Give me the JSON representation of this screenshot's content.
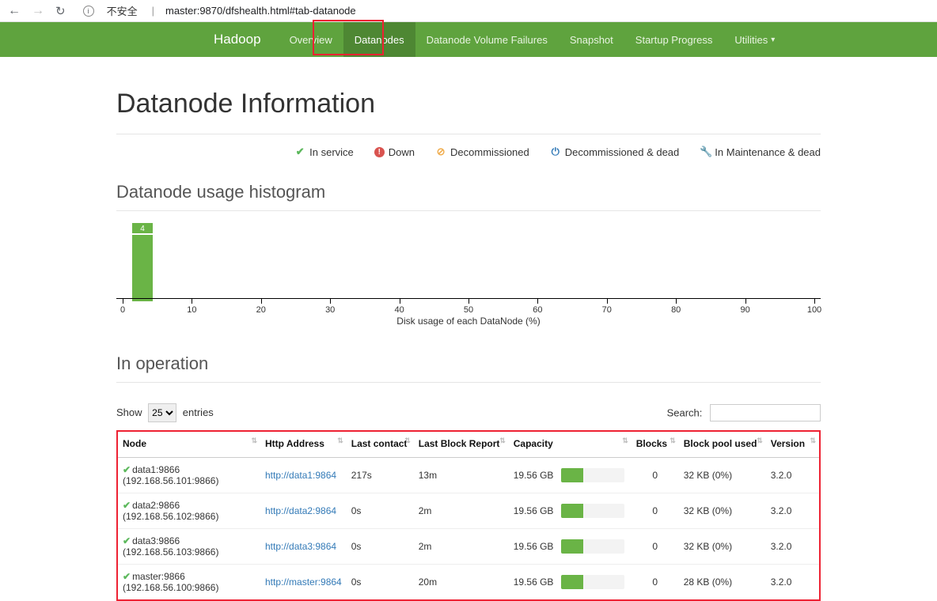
{
  "browser": {
    "insecure": "不安全",
    "url": "master:9870/dfshealth.html#tab-datanode"
  },
  "nav": {
    "brand": "Hadoop",
    "items": [
      "Overview",
      "Datanodes",
      "Datanode Volume Failures",
      "Snapshot",
      "Startup Progress",
      "Utilities"
    ],
    "active_index": 1
  },
  "page": {
    "title": "Datanode Information",
    "legend": {
      "in_service": "In service",
      "down": "Down",
      "decommissioned": "Decommissioned",
      "decommissioned_dead": "Decommissioned & dead",
      "maintenance_dead": "In Maintenance & dead"
    }
  },
  "histogram": {
    "heading": "Datanode usage histogram",
    "bar_value": "4",
    "xlabel": "Disk usage of each DataNode (%)",
    "ticks": [
      0,
      10,
      20,
      30,
      40,
      50,
      60,
      70,
      80,
      90,
      100
    ]
  },
  "operation": {
    "heading": "In operation",
    "show_label": "Show",
    "entries_label": "entries",
    "page_size": "25",
    "search_label": "Search:"
  },
  "table": {
    "columns": [
      "Node",
      "Http Address",
      "Last contact",
      "Last Block Report",
      "Capacity",
      "Blocks",
      "Block pool used",
      "Version"
    ],
    "rows": [
      {
        "node": "data1:9866 (192.168.56.101:9866)",
        "http": "http://data1:9864",
        "last_contact": "217s",
        "last_report": "13m",
        "capacity": "19.56 GB",
        "blocks": "0",
        "pool": "32 KB (0%)",
        "version": "3.2.0"
      },
      {
        "node": "data2:9866 (192.168.56.102:9866)",
        "http": "http://data2:9864",
        "last_contact": "0s",
        "last_report": "2m",
        "capacity": "19.56 GB",
        "blocks": "0",
        "pool": "32 KB (0%)",
        "version": "3.2.0"
      },
      {
        "node": "data3:9866 (192.168.56.103:9866)",
        "http": "http://data3:9864",
        "last_contact": "0s",
        "last_report": "2m",
        "capacity": "19.56 GB",
        "blocks": "0",
        "pool": "32 KB (0%)",
        "version": "3.2.0"
      },
      {
        "node": "master:9866 (192.168.56.100:9866)",
        "http": "http://master:9864",
        "last_contact": "0s",
        "last_report": "20m",
        "capacity": "19.56 GB",
        "blocks": "0",
        "pool": "28 KB (0%)",
        "version": "3.2.0"
      }
    ]
  },
  "colors": {
    "nav_bg": "#5fa33e",
    "nav_active": "#4e8733",
    "green": "#6ab446",
    "link": "#337ab7",
    "highlight": "#e23"
  }
}
